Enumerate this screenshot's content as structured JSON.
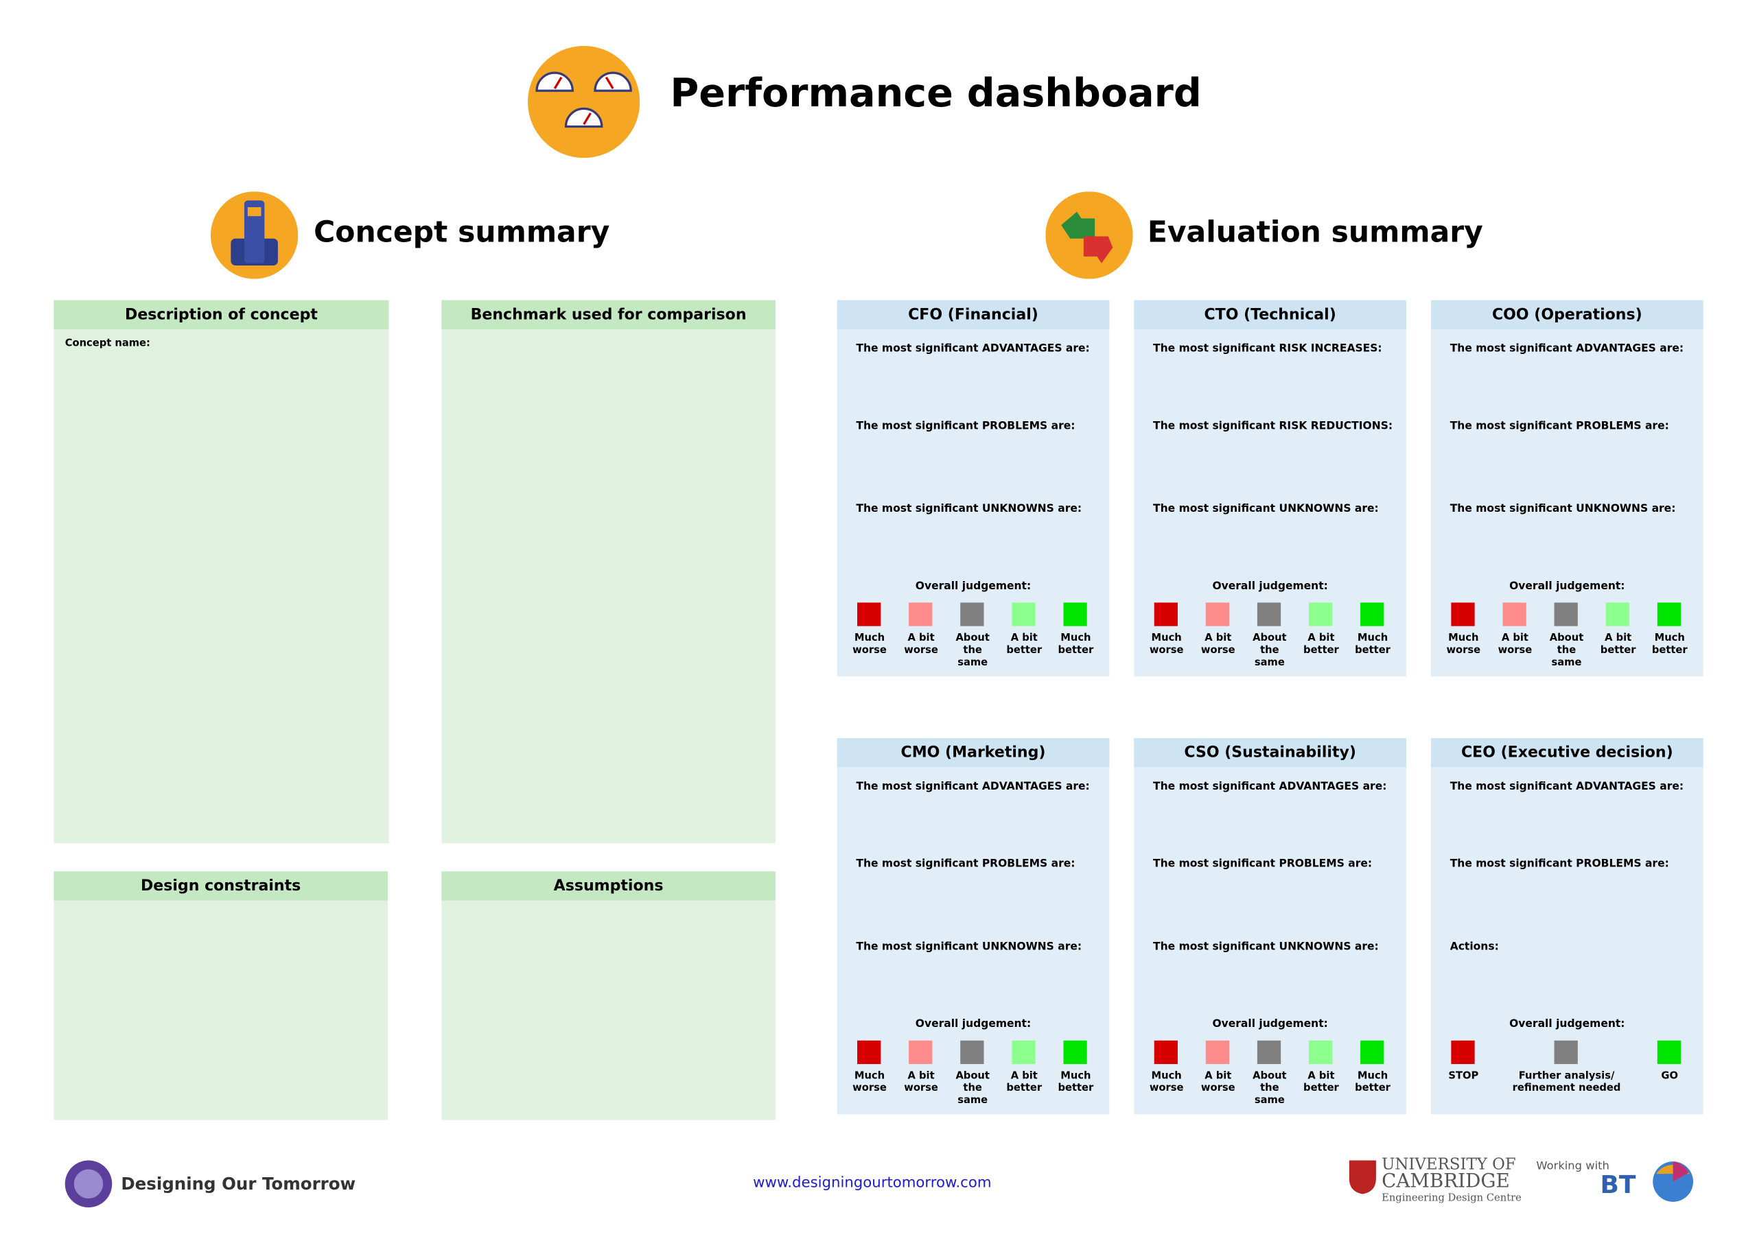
{
  "header": {
    "title": "Performance dashboard"
  },
  "concept": {
    "title": "Concept summary",
    "panels": [
      {
        "title": "Description of concept",
        "label": "Concept name:"
      },
      {
        "title": "Benchmark used for comparison"
      },
      {
        "title": "Design constraints"
      },
      {
        "title": "Assumptions"
      }
    ]
  },
  "evaluation": {
    "title": "Evaluation summary",
    "panels": [
      {
        "title": "CFO (Financial)",
        "prompts": [
          "The most significant ADVANTAGES are:",
          "The most significant PROBLEMS are:",
          "The most significant UNKNOWNS are:"
        ],
        "judgement": "Overall judgement:",
        "options": [
          {
            "label": "Much worse",
            "color": "#d60000"
          },
          {
            "label": "A bit worse",
            "color": "#ff8c8c"
          },
          {
            "label": "About the same",
            "color": "#808080"
          },
          {
            "label": "A bit better",
            "color": "#8cff8c"
          },
          {
            "label": "Much better",
            "color": "#00e600"
          }
        ]
      },
      {
        "title": "CTO (Technical)",
        "prompts": [
          "The most significant RISK INCREASES:",
          "The most significant RISK REDUCTIONS:",
          "The most significant UNKNOWNS are:"
        ],
        "judgement": "Overall judgement:",
        "options": [
          {
            "label": "Much worse",
            "color": "#d60000"
          },
          {
            "label": "A bit worse",
            "color": "#ff8c8c"
          },
          {
            "label": "About the same",
            "color": "#808080"
          },
          {
            "label": "A bit better",
            "color": "#8cff8c"
          },
          {
            "label": "Much better",
            "color": "#00e600"
          }
        ]
      },
      {
        "title": "COO (Operations)",
        "prompts": [
          "The most significant ADVANTAGES are:",
          "The most significant PROBLEMS are:",
          "The most significant UNKNOWNS are:"
        ],
        "judgement": "Overall judgement:",
        "options": [
          {
            "label": "Much worse",
            "color": "#d60000"
          },
          {
            "label": "A bit worse",
            "color": "#ff8c8c"
          },
          {
            "label": "About the same",
            "color": "#808080"
          },
          {
            "label": "A bit better",
            "color": "#8cff8c"
          },
          {
            "label": "Much better",
            "color": "#00e600"
          }
        ]
      },
      {
        "title": "CMO (Marketing)",
        "prompts": [
          "The most significant ADVANTAGES are:",
          "The most significant PROBLEMS are:",
          "The most significant UNKNOWNS are:"
        ],
        "judgement": "Overall judgement:",
        "options": [
          {
            "label": "Much worse",
            "color": "#d60000"
          },
          {
            "label": "A bit worse",
            "color": "#ff8c8c"
          },
          {
            "label": "About the same",
            "color": "#808080"
          },
          {
            "label": "A bit better",
            "color": "#8cff8c"
          },
          {
            "label": "Much better",
            "color": "#00e600"
          }
        ]
      },
      {
        "title": "CSO (Sustainability)",
        "prompts": [
          "The most significant ADVANTAGES are:",
          "The most significant PROBLEMS are:",
          "The most significant UNKNOWNS are:"
        ],
        "judgement": "Overall judgement:",
        "options": [
          {
            "label": "Much worse",
            "color": "#d60000"
          },
          {
            "label": "A bit worse",
            "color": "#ff8c8c"
          },
          {
            "label": "About the same",
            "color": "#808080"
          },
          {
            "label": "A bit better",
            "color": "#8cff8c"
          },
          {
            "label": "Much better",
            "color": "#00e600"
          }
        ]
      },
      {
        "title": "CEO (Executive decision)",
        "prompts": [
          "The most significant ADVANTAGES are:",
          "The most significant PROBLEMS are:",
          "Actions:"
        ],
        "judgement": "Overall judgement:",
        "options": [
          {
            "label": "STOP",
            "color": "#d60000"
          },
          {
            "label": "Further analysis/ refinement needed",
            "color": "#808080"
          },
          {
            "label": "GO",
            "color": "#00e600"
          }
        ]
      }
    ]
  },
  "footer": {
    "brand": "Designing Our Tomorrow",
    "url": "www.designingourtomorrow.com",
    "university": [
      "UNIVERSITY OF",
      "CAMBRIDGE",
      "Engineering Design Centre"
    ],
    "partner_intro": "Working with",
    "partner": "BT"
  }
}
